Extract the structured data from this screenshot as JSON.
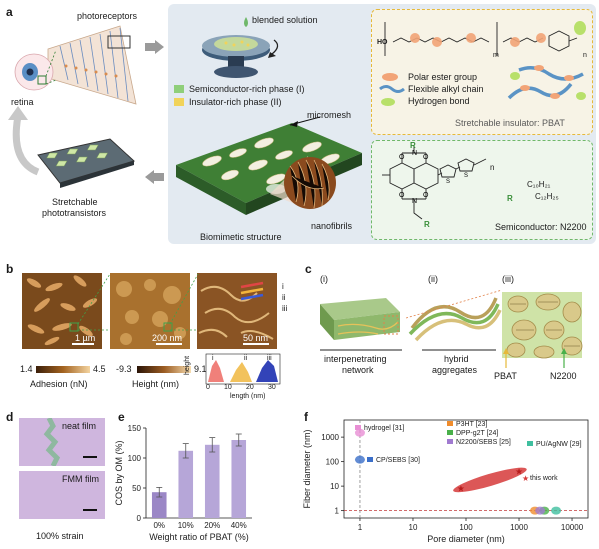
{
  "panel_a": {
    "label": "a",
    "photoreceptors": "photoreceptors",
    "retina": "retina",
    "stretchable_phototransistors": [
      "Stretchable",
      "phototransistors"
    ],
    "blended_solution": "blended solution",
    "phase_I": "Semiconductor-rich phase (I)",
    "phase_II": "Insulator-rich phase (II)",
    "micromesh": "micromesh",
    "nanofibrils": "nanofibrils",
    "biomimetic_structure": "Biomimetic structure",
    "pbat_legend": [
      "Polar ester group",
      "Flexible alkyl chain",
      "Hydrogen bond"
    ],
    "pbat_title": "Stretchable insulator: PBAT",
    "semiconductor_title": "Semiconductor: N2200",
    "alkyl_1": "C₁₀H₂₁",
    "alkyl_2": "C₁₂H₂₅",
    "r_label": "R",
    "n_label": "n",
    "m_label": "m",
    "ho_label": "HO",
    "colors": {
      "panel_bg": "#e3eaf1",
      "phase_I": "#8fcf7a",
      "phase_II": "#f1d35a",
      "ester": "#f2a477"
    }
  },
  "panel_b": {
    "label": "b",
    "scale_1": "1 µm",
    "scale_2": "200 nm",
    "scale_3": "50 nm",
    "roman": [
      "i",
      "ii",
      "iii"
    ],
    "adhesion_min": "1.4",
    "adhesion_max": "4.5",
    "adhesion_label": "Adhesion (nN)",
    "height_min": "-9.3",
    "height_max": "9.1",
    "height_label": "Height (nm)",
    "inset_ylabel": "height",
    "inset_xlabel": "length (nm)",
    "inset_ticks": [
      "0",
      "10",
      "20",
      "30"
    ]
  },
  "panel_c": {
    "label": "c",
    "stages": [
      "(i)",
      "(ii)",
      "(iii)"
    ],
    "caption_1": [
      "interpenetrating",
      "network"
    ],
    "caption_2": [
      "hybrid",
      "aggregates"
    ],
    "pbat": "PBAT",
    "n2200": "N2200"
  },
  "panel_d": {
    "label": "d",
    "neat_film": "neat film",
    "fmm_film": "FMM film",
    "caption": "100% strain"
  },
  "panel_e": {
    "label": "e",
    "chart_data": {
      "type": "bar",
      "categories": [
        "0%",
        "10%",
        "20%",
        "40%"
      ],
      "values": [
        43,
        112,
        122,
        130
      ],
      "errors": [
        8,
        12,
        12,
        10
      ],
      "ylabel": "COS by OM (%)",
      "xlabel": "Weight ratio of PBAT (%)",
      "ylim": [
        0,
        150
      ],
      "yticks": [
        "0",
        "50",
        "100",
        "150"
      ],
      "bar_colors": [
        "#9b87c6",
        "#b6a6d8",
        "#b6a6d8",
        "#b6a6d8"
      ]
    }
  },
  "panel_f": {
    "label": "f",
    "chart_data": {
      "type": "scatter",
      "xlabel": "Pore diameter (nm)",
      "ylabel": "Fiber diameter (nm)",
      "xscale": "log",
      "yscale": "log",
      "xlim": [
        0.5,
        20000
      ],
      "ylim": [
        0.5,
        5000
      ],
      "xticks": [
        "1",
        "10",
        "100",
        "1000",
        "10000"
      ],
      "yticks": [
        "1",
        "10",
        "100",
        "1000"
      ],
      "series": [
        {
          "name": "hydrogel",
          "ref": "[31]",
          "color": "#e88fd4",
          "points": [
            [
              1,
              1500
            ]
          ]
        },
        {
          "name": "CP/SEBS",
          "ref": "[30]",
          "color": "#3b6fc9",
          "points": [
            [
              1,
              120
            ]
          ]
        },
        {
          "name": "P3HT",
          "ref": "[23]",
          "color": "#f08c2c",
          "points": [
            [
              2000,
              1
            ]
          ]
        },
        {
          "name": "DPP-g2T",
          "ref": "[24]",
          "color": "#49b04a",
          "points": [
            [
              3000,
              1
            ]
          ]
        },
        {
          "name": "N2200/SEBS",
          "ref": "[25]",
          "color": "#a07ad0",
          "points": [
            [
              2500,
              1
            ]
          ]
        },
        {
          "name": "PU/AgNW",
          "ref": "[29]",
          "color": "#3fbf9f",
          "points": [
            [
              5000,
              1
            ]
          ]
        },
        {
          "name": "this work",
          "ref": "",
          "color": "#d63a3a",
          "points": [
            [
              80,
              8
            ],
            [
              1000,
              40
            ]
          ]
        }
      ]
    }
  }
}
